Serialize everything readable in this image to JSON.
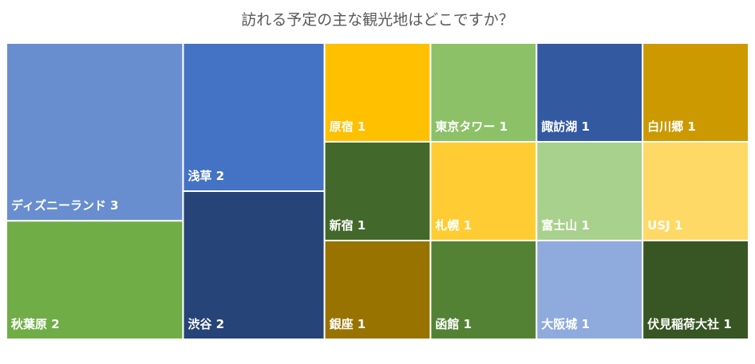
{
  "chart_data": {
    "type": "treemap",
    "title": "訪れる予定の主な観光地はどこですか？",
    "items": [
      {
        "name": "ディズニーランド",
        "value": 3,
        "color": "#698ED0"
      },
      {
        "name": "秋葉原",
        "value": 2,
        "color": "#70AD47"
      },
      {
        "name": "浅草",
        "value": 2,
        "color": "#4472C4"
      },
      {
        "name": "渋谷",
        "value": 2,
        "color": "#264478"
      },
      {
        "name": "原宿",
        "value": 1,
        "color": "#FFC000"
      },
      {
        "name": "新宿",
        "value": 1,
        "color": "#43682B"
      },
      {
        "name": "銀座",
        "value": 1,
        "color": "#997300"
      },
      {
        "name": "東京タワー",
        "value": 1,
        "color": "#8CC168"
      },
      {
        "name": "札幌",
        "value": 1,
        "color": "#FFCD33"
      },
      {
        "name": "函館",
        "value": 1,
        "color": "#548235"
      },
      {
        "name": "諏訪湖",
        "value": 1,
        "color": "#335AA1"
      },
      {
        "name": "富士山",
        "value": 1,
        "color": "#A9D18E"
      },
      {
        "name": "大阪城",
        "value": 1,
        "color": "#8FAADC"
      },
      {
        "name": "白川郷",
        "value": 1,
        "color": "#CC9A00"
      },
      {
        "name": "USJ",
        "value": 1,
        "color": "#FFD966"
      },
      {
        "name": "伏見稲荷大社",
        "value": 1,
        "color": "#375623"
      }
    ]
  }
}
